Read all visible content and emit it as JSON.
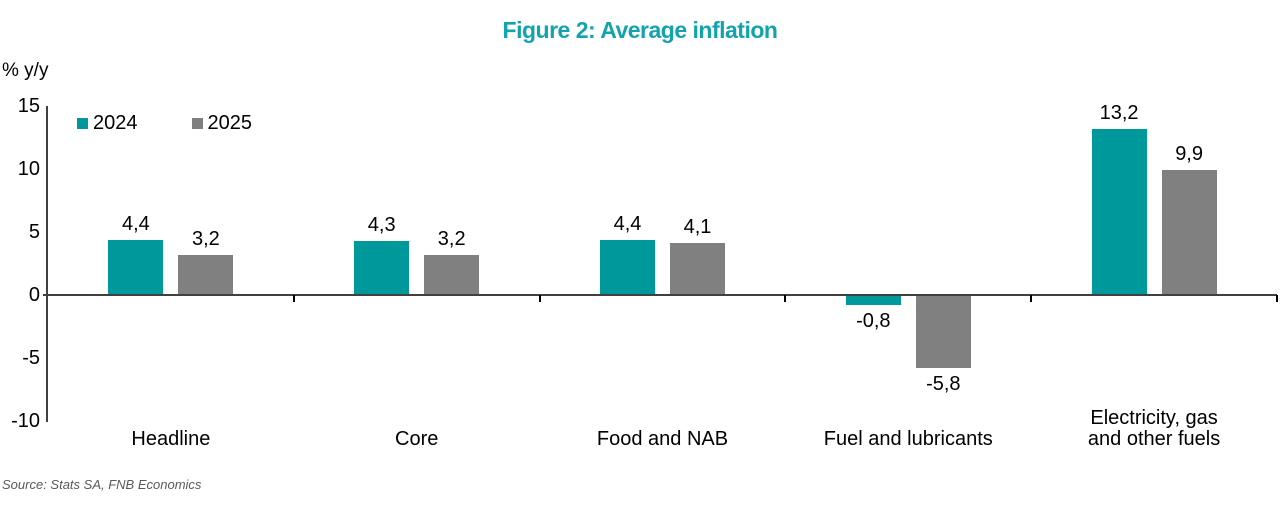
{
  "title": "Figure 2: Average inflation",
  "ylabel": "% y/y",
  "source": "Source: Stats SA, FNB Economics",
  "colors": {
    "title": "#13A3AE",
    "series_2024": "#00999B",
    "series_2025": "#808080",
    "axis": "#404040",
    "text": "#000000",
    "source_text": "#595959"
  },
  "chart_data": {
    "type": "bar",
    "title": "Figure 2: Average inflation",
    "ylabel": "% y/y",
    "xlabel": "",
    "categories": [
      "Headline",
      "Core",
      "Food and NAB",
      "Fuel and lubricants",
      "Electricity, gas\nand other fuels"
    ],
    "series": [
      {
        "name": "2024",
        "color": "#00999B",
        "values": [
          4.4,
          4.3,
          4.4,
          -0.8,
          13.2
        ]
      },
      {
        "name": "2025",
        "color": "#808080",
        "values": [
          3.2,
          3.2,
          4.1,
          -5.8,
          9.9
        ]
      }
    ],
    "ylim": [
      -10,
      15
    ],
    "yticks": [
      15,
      10,
      5,
      0,
      -5,
      -10
    ],
    "grid": false,
    "legend_position": "top-left",
    "decimal_separator": ",",
    "value_labels_shown": true
  }
}
